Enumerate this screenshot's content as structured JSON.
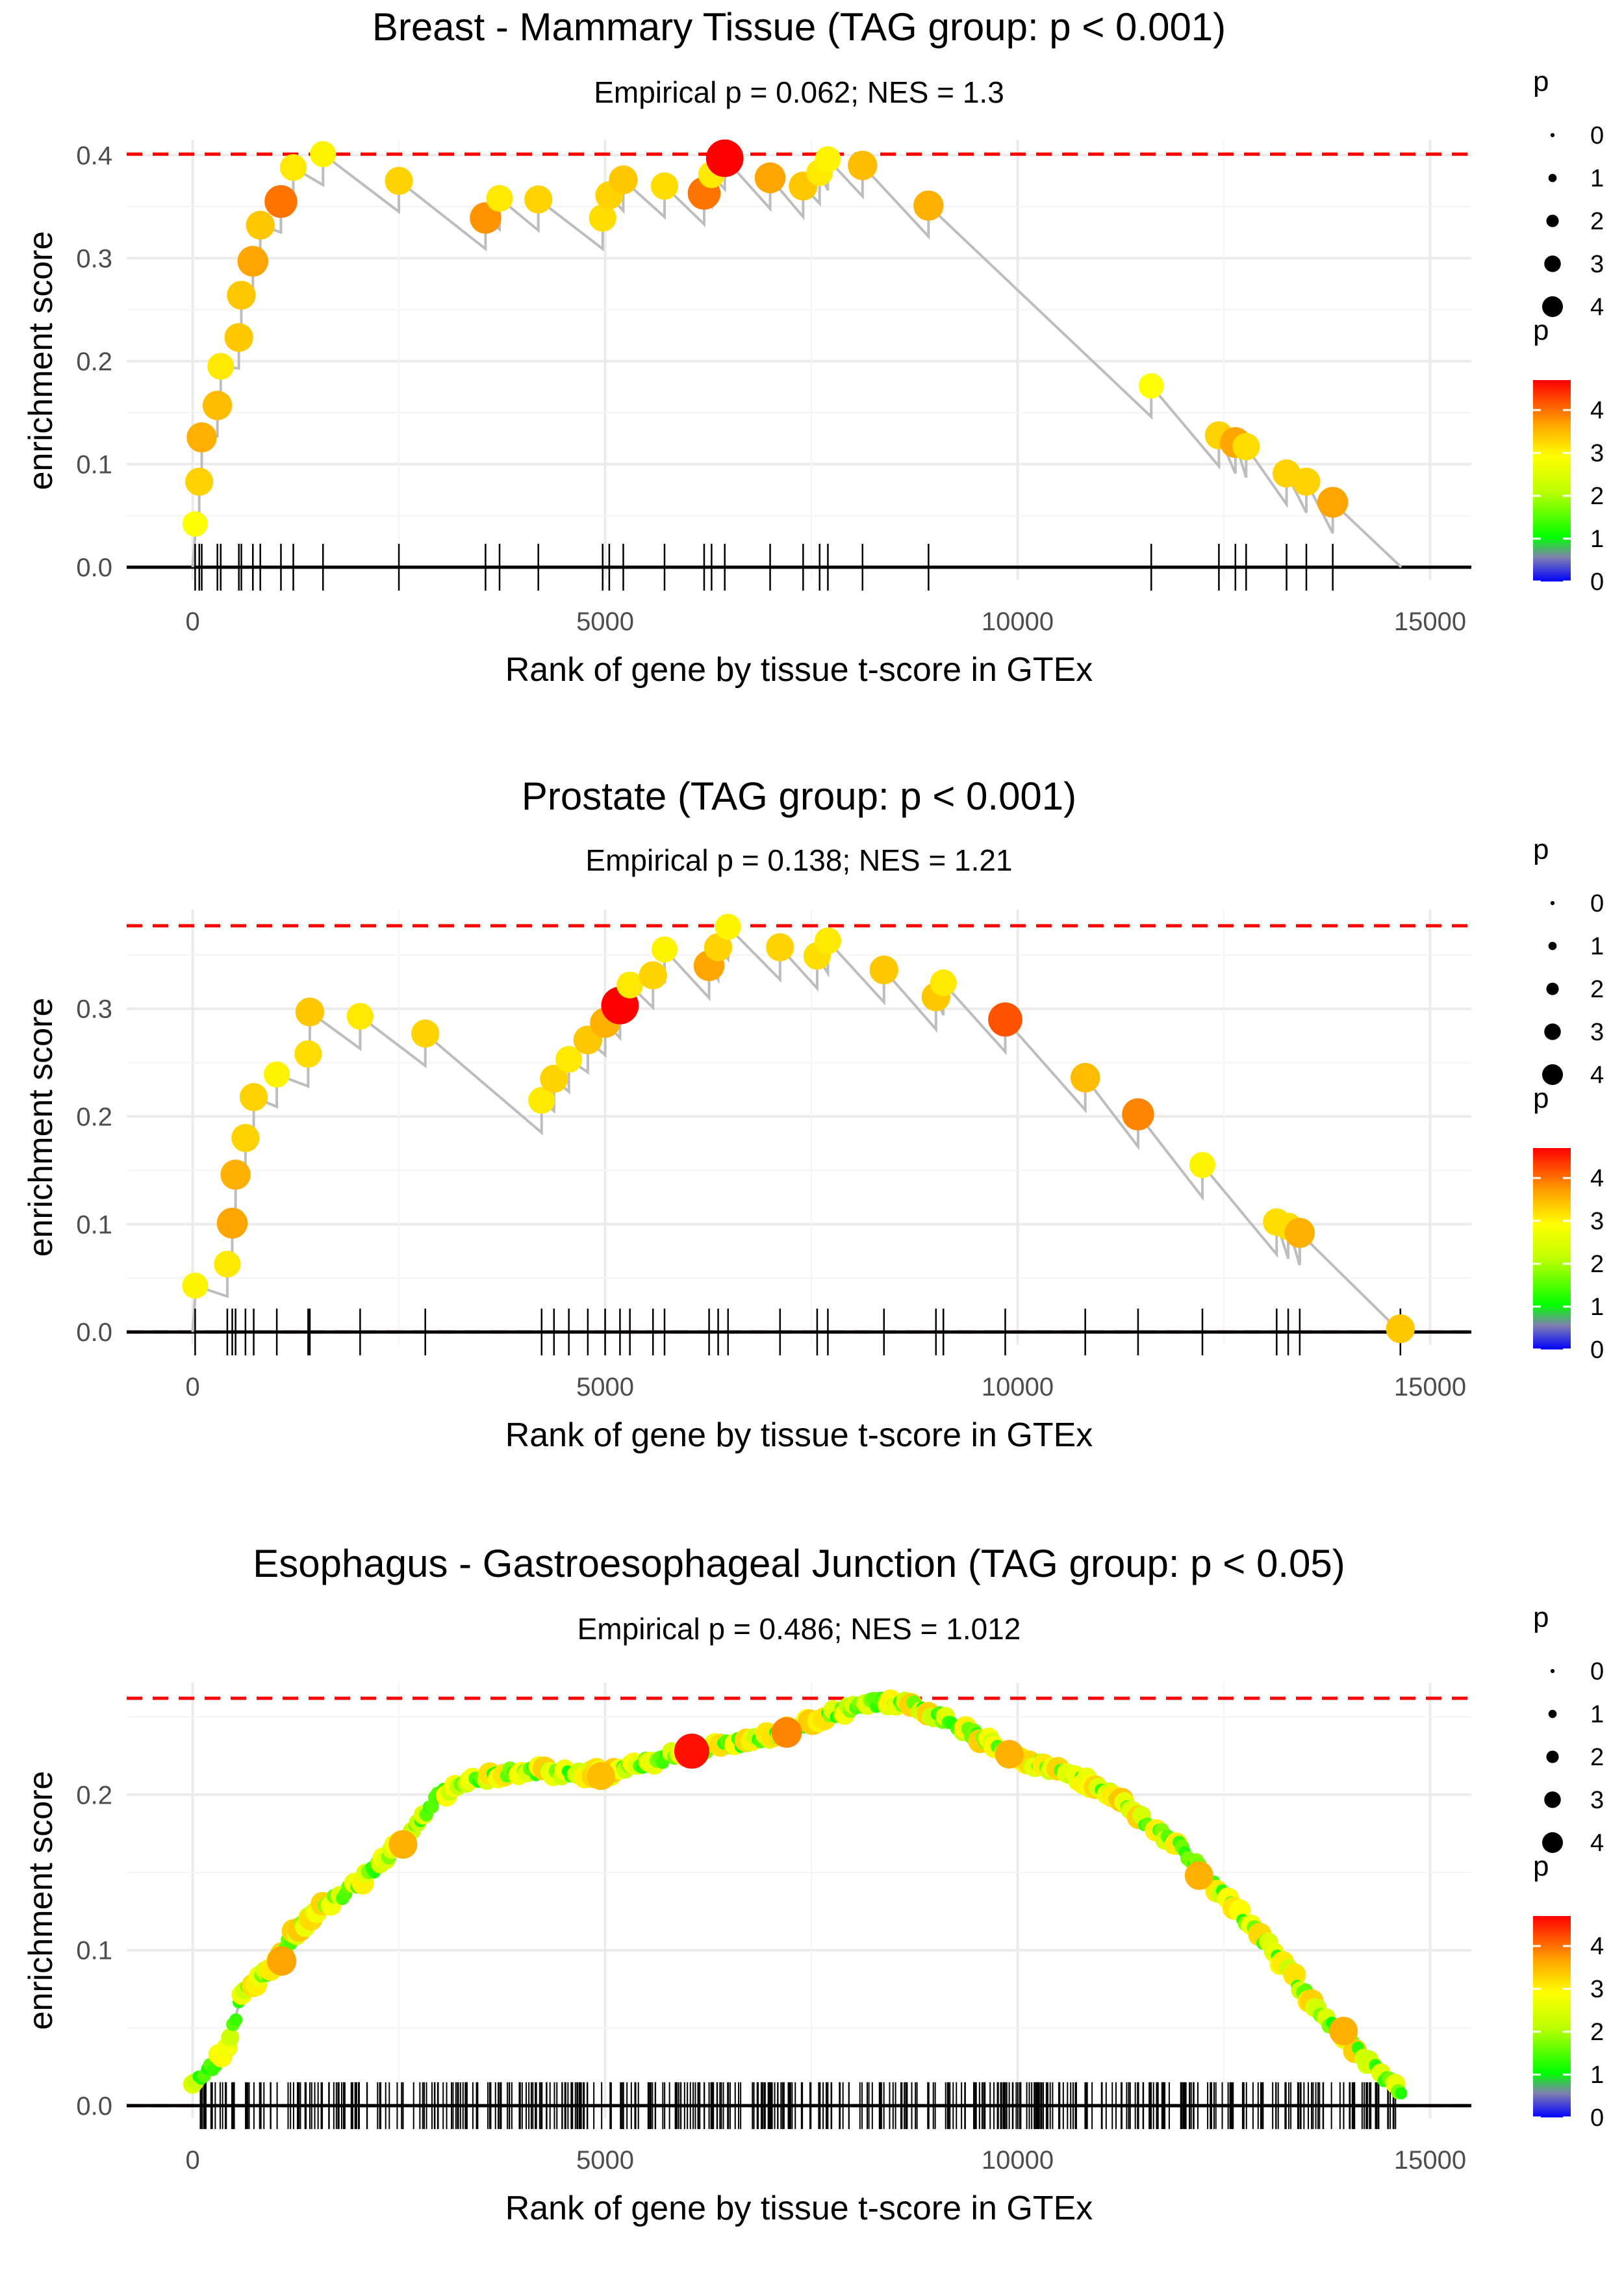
{
  "chart_data": [
    {
      "type": "scatter",
      "title": "Breast - Mammary Tissue (TAG group: p < 0.001)",
      "subtitle": "Empirical p = 0.062; NES = 1.3",
      "xlabel": "Rank of gene by tissue t-score in GTEx",
      "ylabel": "enrichment score",
      "xlim": [
        -800,
        15500
      ],
      "ylim": [
        -0.012,
        0.415
      ],
      "xticks": [
        0,
        5000,
        10000,
        15000
      ],
      "xtick_labels": [
        "0",
        "5000",
        "10000",
        "15000"
      ],
      "yticks": [
        0,
        0.1,
        0.2,
        0.3,
        0.4
      ],
      "ytick_labels": [
        "0.0",
        "0.1",
        "0.2",
        "0.3",
        "0.4"
      ],
      "max_es": 0.401,
      "end_rank": 14650,
      "mode": "points",
      "points": [
        {
          "x": 30,
          "y": 0.042,
          "p": 2.8
        },
        {
          "x": 80,
          "y": 0.083,
          "p": 3.2
        },
        {
          "x": 110,
          "y": 0.126,
          "p": 3.5
        },
        {
          "x": 300,
          "y": 0.157,
          "p": 3.4
        },
        {
          "x": 340,
          "y": 0.195,
          "p": 3.0
        },
        {
          "x": 560,
          "y": 0.223,
          "p": 3.3
        },
        {
          "x": 590,
          "y": 0.264,
          "p": 3.3
        },
        {
          "x": 730,
          "y": 0.297,
          "p": 3.6
        },
        {
          "x": 820,
          "y": 0.332,
          "p": 3.3
        },
        {
          "x": 1070,
          "y": 0.355,
          "p": 3.9
        },
        {
          "x": 1220,
          "y": 0.388,
          "p": 3.0
        },
        {
          "x": 1580,
          "y": 0.401,
          "p": 2.9
        },
        {
          "x": 2500,
          "y": 0.375,
          "p": 3.2
        },
        {
          "x": 3550,
          "y": 0.339,
          "p": 3.7
        },
        {
          "x": 3720,
          "y": 0.358,
          "p": 3.0
        },
        {
          "x": 4190,
          "y": 0.357,
          "p": 3.2
        },
        {
          "x": 4970,
          "y": 0.339,
          "p": 3.1
        },
        {
          "x": 5050,
          "y": 0.361,
          "p": 3.2
        },
        {
          "x": 5220,
          "y": 0.376,
          "p": 3.3
        },
        {
          "x": 5720,
          "y": 0.37,
          "p": 3.1
        },
        {
          "x": 6200,
          "y": 0.363,
          "p": 3.9
        },
        {
          "x": 6290,
          "y": 0.381,
          "p": 3.0
        },
        {
          "x": 6450,
          "y": 0.397,
          "p": 4.6
        },
        {
          "x": 7000,
          "y": 0.378,
          "p": 3.6
        },
        {
          "x": 7400,
          "y": 0.37,
          "p": 3.3
        },
        {
          "x": 7600,
          "y": 0.383,
          "p": 3.0
        },
        {
          "x": 7700,
          "y": 0.396,
          "p": 2.9
        },
        {
          "x": 8120,
          "y": 0.39,
          "p": 3.4
        },
        {
          "x": 8920,
          "y": 0.351,
          "p": 3.5
        },
        {
          "x": 11620,
          "y": 0.176,
          "p": 2.8
        },
        {
          "x": 12440,
          "y": 0.128,
          "p": 3.2
        },
        {
          "x": 12640,
          "y": 0.121,
          "p": 3.6
        },
        {
          "x": 12770,
          "y": 0.117,
          "p": 3.1
        },
        {
          "x": 13260,
          "y": 0.091,
          "p": 3.2
        },
        {
          "x": 13500,
          "y": 0.083,
          "p": 3.2
        },
        {
          "x": 13820,
          "y": 0.063,
          "p": 3.6
        }
      ]
    },
    {
      "type": "scatter",
      "title": "Prostate (TAG group: p < 0.001)",
      "subtitle": "Empirical p = 0.138; NES = 1.21",
      "xlabel": "Rank of gene by tissue t-score in GTEx",
      "ylabel": "enrichment score",
      "xlim": [
        -800,
        15500
      ],
      "ylim": [
        -0.012,
        0.392
      ],
      "xticks": [
        0,
        5000,
        10000,
        15000
      ],
      "xtick_labels": [
        "0",
        "5000",
        "10000",
        "15000"
      ],
      "yticks": [
        0,
        0.1,
        0.2,
        0.3
      ],
      "ytick_labels": [
        "0.0",
        "0.1",
        "0.2",
        "0.3"
      ],
      "max_es": 0.377,
      "end_rank": 14650,
      "mode": "points",
      "points": [
        {
          "x": 30,
          "y": 0.043,
          "p": 2.9
        },
        {
          "x": 420,
          "y": 0.063,
          "p": 3.0
        },
        {
          "x": 480,
          "y": 0.101,
          "p": 3.6
        },
        {
          "x": 520,
          "y": 0.146,
          "p": 3.5
        },
        {
          "x": 640,
          "y": 0.18,
          "p": 3.2
        },
        {
          "x": 740,
          "y": 0.218,
          "p": 3.2
        },
        {
          "x": 1020,
          "y": 0.239,
          "p": 2.9
        },
        {
          "x": 1400,
          "y": 0.258,
          "p": 3.1
        },
        {
          "x": 1420,
          "y": 0.297,
          "p": 3.3
        },
        {
          "x": 2030,
          "y": 0.293,
          "p": 3.0
        },
        {
          "x": 2820,
          "y": 0.277,
          "p": 3.2
        },
        {
          "x": 4230,
          "y": 0.215,
          "p": 3.0
        },
        {
          "x": 4380,
          "y": 0.235,
          "p": 3.2
        },
        {
          "x": 4560,
          "y": 0.253,
          "p": 3.0
        },
        {
          "x": 4790,
          "y": 0.271,
          "p": 3.3
        },
        {
          "x": 5000,
          "y": 0.287,
          "p": 3.5
        },
        {
          "x": 5180,
          "y": 0.303,
          "p": 4.6
        },
        {
          "x": 5300,
          "y": 0.322,
          "p": 3.0
        },
        {
          "x": 5580,
          "y": 0.331,
          "p": 3.2
        },
        {
          "x": 5720,
          "y": 0.355,
          "p": 2.9
        },
        {
          "x": 6260,
          "y": 0.34,
          "p": 3.6
        },
        {
          "x": 6370,
          "y": 0.357,
          "p": 3.2
        },
        {
          "x": 6490,
          "y": 0.376,
          "p": 2.9
        },
        {
          "x": 7120,
          "y": 0.357,
          "p": 3.2
        },
        {
          "x": 7570,
          "y": 0.349,
          "p": 3.1
        },
        {
          "x": 7700,
          "y": 0.363,
          "p": 3.0
        },
        {
          "x": 8380,
          "y": 0.336,
          "p": 3.3
        },
        {
          "x": 9010,
          "y": 0.311,
          "p": 3.3
        },
        {
          "x": 9100,
          "y": 0.324,
          "p": 3.0
        },
        {
          "x": 9850,
          "y": 0.29,
          "p": 4.1
        },
        {
          "x": 10820,
          "y": 0.236,
          "p": 3.4
        },
        {
          "x": 11460,
          "y": 0.202,
          "p": 3.8
        },
        {
          "x": 12240,
          "y": 0.155,
          "p": 2.9
        },
        {
          "x": 13140,
          "y": 0.102,
          "p": 3.1
        },
        {
          "x": 13280,
          "y": 0.098,
          "p": 3.1
        },
        {
          "x": 13420,
          "y": 0.092,
          "p": 3.5
        },
        {
          "x": 14640,
          "y": 0.003,
          "p": 3.3
        }
      ]
    },
    {
      "type": "scatter",
      "title": "Esophagus - Gastroesophageal Junction (TAG group: p < 0.05)",
      "subtitle": "Empirical p = 0.486; NES = 1.012",
      "xlabel": "Rank of gene by tissue t-score in GTEx",
      "ylabel": "enrichment score",
      "xlim": [
        -800,
        15500
      ],
      "ylim": [
        -0.008,
        0.272
      ],
      "xticks": [
        0,
        5000,
        10000,
        15000
      ],
      "xtick_labels": [
        "0",
        "5000",
        "10000",
        "15000"
      ],
      "yticks": [
        0,
        0.1,
        0.2
      ],
      "ytick_labels": [
        "0.0",
        "0.1",
        "0.2"
      ],
      "max_es": 0.262,
      "end_rank": 14650,
      "mode": "dense",
      "dense_range": [
        0,
        14650
      ],
      "curve": [
        [
          0,
          0.012
        ],
        [
          400,
          0.035
        ],
        [
          600,
          0.072
        ],
        [
          900,
          0.085
        ],
        [
          1200,
          0.108
        ],
        [
          1500,
          0.125
        ],
        [
          2000,
          0.142
        ],
        [
          2500,
          0.168
        ],
        [
          3000,
          0.2
        ],
        [
          3400,
          0.21
        ],
        [
          4000,
          0.216
        ],
        [
          5000,
          0.213
        ],
        [
          6000,
          0.228
        ],
        [
          7000,
          0.237
        ],
        [
          7500,
          0.247
        ],
        [
          8200,
          0.26
        ],
        [
          8800,
          0.257
        ],
        [
          10000,
          0.224
        ],
        [
          11000,
          0.205
        ],
        [
          12000,
          0.165
        ],
        [
          13000,
          0.105
        ],
        [
          13800,
          0.052
        ],
        [
          14300,
          0.025
        ],
        [
          14650,
          0.008
        ]
      ],
      "highlights": [
        {
          "x": 1080,
          "y": 0.093,
          "p": 3.6
        },
        {
          "x": 2550,
          "y": 0.168,
          "p": 3.5
        },
        {
          "x": 4950,
          "y": 0.212,
          "p": 3.4
        },
        {
          "x": 6050,
          "y": 0.228,
          "p": 4.5
        },
        {
          "x": 7200,
          "y": 0.24,
          "p": 3.8
        },
        {
          "x": 9900,
          "y": 0.226,
          "p": 3.5
        },
        {
          "x": 12200,
          "y": 0.148,
          "p": 3.5
        },
        {
          "x": 13950,
          "y": 0.048,
          "p": 3.5
        }
      ]
    }
  ],
  "legend": {
    "size": {
      "title": "p",
      "labels": [
        "0",
        "1",
        "2",
        "3",
        "4"
      ]
    },
    "color": {
      "title": "p",
      "labels": [
        "0",
        "1",
        "2",
        "3",
        "4"
      ]
    }
  }
}
